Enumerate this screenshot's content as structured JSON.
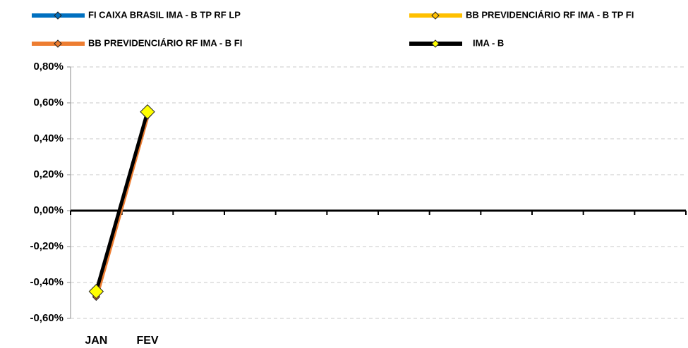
{
  "chart_data": {
    "type": "line",
    "categories": [
      "JAN",
      "FEV",
      null,
      null,
      null,
      null,
      null,
      null,
      null,
      null,
      null,
      null
    ],
    "series": [
      {
        "name": "FI CAIXA BRASIL IMA - B TP RF LP",
        "color": "#0070c0",
        "values": [
          -0.46,
          0.53,
          null,
          null,
          null,
          null,
          null,
          null,
          null,
          null,
          null,
          null
        ]
      },
      {
        "name": "BB PREVIDENCIÁRIO RF IMA - B TP FI",
        "color": "#ffc000",
        "values": [
          -0.47,
          0.54,
          null,
          null,
          null,
          null,
          null,
          null,
          null,
          null,
          null,
          null
        ]
      },
      {
        "name": "BB PREVIDENCIÁRIO RF IMA - B FI",
        "color": "#ed7d31",
        "values": [
          -0.48,
          0.53,
          null,
          null,
          null,
          null,
          null,
          null,
          null,
          null,
          null,
          null
        ]
      },
      {
        "name": "IMA - B",
        "color": "#000000",
        "values": [
          -0.45,
          0.55,
          null,
          null,
          null,
          null,
          null,
          null,
          null,
          null,
          null,
          null
        ]
      }
    ],
    "ylim": [
      -0.6,
      0.8
    ],
    "yticks": [
      {
        "value": -0.6,
        "label": "-0,60%"
      },
      {
        "value": -0.4,
        "label": "-0,40%"
      },
      {
        "value": -0.2,
        "label": "-0,20%"
      },
      {
        "value": 0,
        "label": "0,00%"
      },
      {
        "value": 0.2,
        "label": "0,20%"
      },
      {
        "value": 0.4,
        "label": "0,40%"
      },
      {
        "value": 0.6,
        "label": "0,60%"
      },
      {
        "value": 0.8,
        "label": "0,80%"
      }
    ],
    "grid": true
  }
}
